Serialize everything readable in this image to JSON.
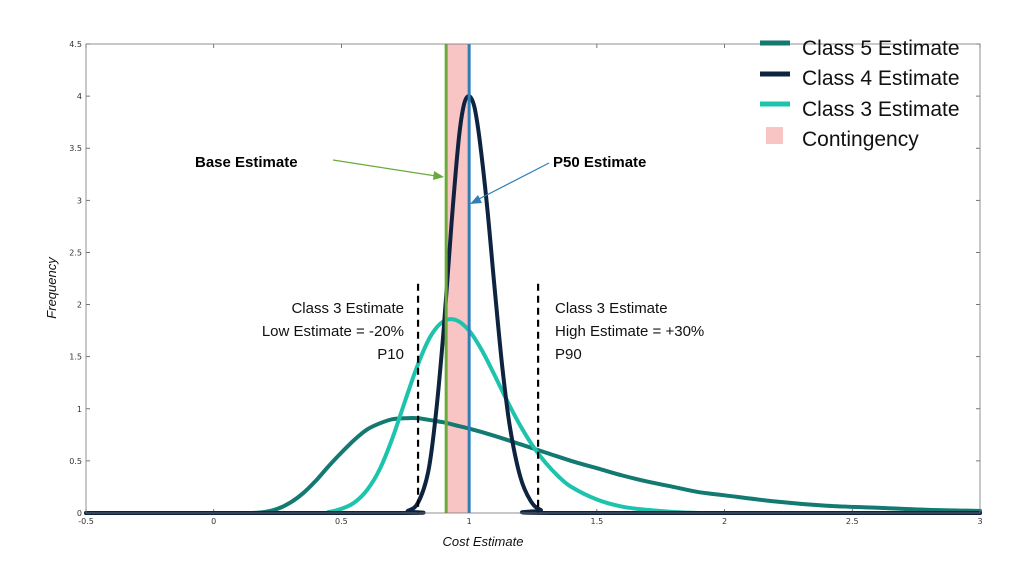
{
  "chart_data": {
    "type": "line",
    "title": "",
    "xlabel": "Cost Estimate",
    "ylabel": "Frequency",
    "xlim": [
      -0.5,
      3
    ],
    "ylim": [
      0,
      4.5
    ],
    "xticks": [
      "-0.5",
      "0",
      "0.5",
      "1",
      "1.5",
      "2",
      "2.5",
      "3"
    ],
    "yticks": [
      "0",
      "0.5",
      "1",
      "1.5",
      "2",
      "2.5",
      "3",
      "3.5",
      "4",
      "4.5"
    ],
    "series": [
      {
        "name": "Class 5 Estimate",
        "color": "#137a72",
        "x": [
          -0.5,
          0.1,
          0.15,
          0.2,
          0.25,
          0.3,
          0.35,
          0.4,
          0.45,
          0.5,
          0.55,
          0.6,
          0.65,
          0.7,
          0.75,
          0.8,
          0.85,
          0.9,
          0.95,
          1.0,
          1.1,
          1.2,
          1.3,
          1.4,
          1.5,
          1.6,
          1.7,
          1.8,
          1.9,
          2.0,
          2.2,
          2.4,
          2.6,
          2.8,
          3.0
        ],
        "values": [
          0,
          0,
          0.0,
          0.01,
          0.04,
          0.1,
          0.19,
          0.31,
          0.45,
          0.58,
          0.7,
          0.8,
          0.86,
          0.9,
          0.91,
          0.91,
          0.89,
          0.87,
          0.84,
          0.81,
          0.74,
          0.66,
          0.58,
          0.5,
          0.43,
          0.36,
          0.3,
          0.25,
          0.2,
          0.17,
          0.11,
          0.07,
          0.05,
          0.03,
          0.02
        ]
      },
      {
        "name": "Class 4 Estimate",
        "color": "#0e2340",
        "x": [
          -0.5,
          0.72,
          0.76,
          0.8,
          0.84,
          0.87,
          0.9,
          0.93,
          0.96,
          0.98,
          1.0,
          1.02,
          1.04,
          1.07,
          1.1,
          1.13,
          1.16,
          1.2,
          1.24,
          1.28,
          1.35,
          3.0
        ],
        "values": [
          0,
          0,
          0.02,
          0.1,
          0.4,
          0.95,
          1.75,
          2.75,
          3.6,
          3.92,
          4.0,
          3.9,
          3.6,
          2.95,
          2.15,
          1.4,
          0.82,
          0.35,
          0.12,
          0.03,
          0,
          0
        ]
      },
      {
        "name": "Class 3 Estimate",
        "color": "#1ec3ad",
        "x": [
          -0.5,
          0.4,
          0.45,
          0.5,
          0.55,
          0.6,
          0.65,
          0.7,
          0.75,
          0.8,
          0.85,
          0.9,
          0.95,
          1.0,
          1.05,
          1.1,
          1.15,
          1.2,
          1.25,
          1.3,
          1.35,
          1.4,
          1.5,
          1.6,
          1.7,
          1.8,
          1.9,
          2.0,
          2.2,
          3.0
        ],
        "values": [
          0,
          0,
          0.01,
          0.04,
          0.1,
          0.22,
          0.42,
          0.72,
          1.08,
          1.43,
          1.7,
          1.84,
          1.85,
          1.75,
          1.56,
          1.32,
          1.07,
          0.84,
          0.64,
          0.48,
          0.35,
          0.25,
          0.13,
          0.06,
          0.03,
          0.01,
          0.0,
          0,
          0,
          0
        ]
      }
    ],
    "contingency": {
      "name": "Contingency",
      "x_start": 0.91,
      "x_end": 1.0,
      "color": "#f9c4c4"
    },
    "vlines": [
      {
        "name": "Base Estimate",
        "x": 0.91,
        "color": "#6aaa3a",
        "style": "solid"
      },
      {
        "name": "P50 Estimate",
        "x": 1.0,
        "color": "#2e7fb8",
        "style": "solid"
      },
      {
        "name": "P10",
        "x": 0.8,
        "color": "#000000",
        "style": "dashed",
        "y_top": 2.2
      },
      {
        "name": "P90",
        "x": 1.27,
        "color": "#000000",
        "style": "dashed",
        "y_top": 2.2
      }
    ],
    "annotations": {
      "base_estimate": "Base Estimate",
      "p50_estimate": "P50 Estimate",
      "low": [
        "Class 3 Estimate",
        "Low Estimate = -20%",
        "P10"
      ],
      "high": [
        "Class 3 Estimate",
        "High Estimate = +30%",
        "P90"
      ]
    },
    "legend": {
      "position": "top-right",
      "entries": [
        "Class 5 Estimate",
        "Class 4 Estimate",
        "Class 3 Estimate",
        "Contingency"
      ]
    }
  }
}
